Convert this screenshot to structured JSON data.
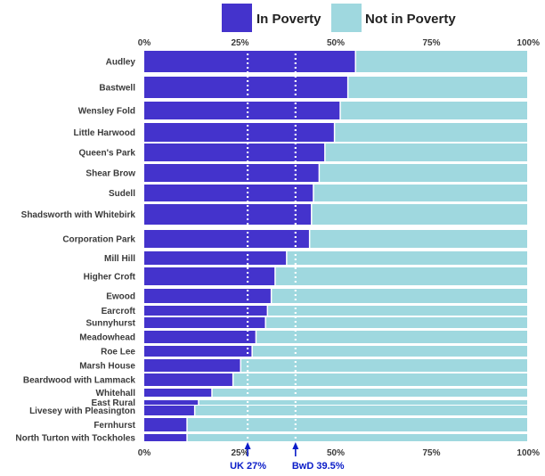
{
  "chart_data": {
    "type": "bar",
    "orientation": "horizontal",
    "stacked": true,
    "percent_stacked": true,
    "title": "",
    "xlabel": "",
    "ylabel": "",
    "xlim": [
      0,
      100
    ],
    "x_ticks": [
      "0%",
      "25%",
      "50%",
      "75%",
      "100%"
    ],
    "grid": false,
    "legend_position": "top",
    "categories": [
      "Audley",
      "Bastwell",
      "Wensley Fold",
      "Little Harwood",
      "Queen's Park",
      "Shear Brow",
      "Sudell",
      "Shadsworth with Whitebirk",
      "Corporation Park",
      "Mill Hill",
      "Higher Croft",
      "Ewood",
      "Earcroft",
      "Sunnyhurst",
      "Meadowhead",
      "Roe Lee",
      "Marsh House",
      "Beardwood with Lammack",
      "Whitehall",
      "East Rural",
      "Livesey with Pleasington",
      "Fernhurst",
      "North Turton with Tockholes"
    ],
    "series": [
      {
        "name": "In Poverty",
        "color": "#4433cc",
        "values": [
          55,
          53,
          51,
          49.5,
          47,
          45.5,
          44,
          43.5,
          43,
          37,
          34,
          33,
          32,
          31.5,
          29,
          28,
          25,
          23,
          17.5,
          14,
          13,
          11,
          11
        ]
      },
      {
        "name": "Not in Poverty",
        "color": "#9fd8df",
        "values": [
          45,
          47,
          49,
          50.5,
          53,
          54.5,
          56,
          56.5,
          57,
          63,
          66,
          67,
          68,
          68.5,
          71,
          72,
          75,
          77,
          82.5,
          86,
          87,
          89,
          89
        ]
      }
    ],
    "reference_lines": [
      {
        "label": "UK 27%",
        "value": 27
      },
      {
        "label": "BwD 39.5%",
        "value": 39.5
      }
    ]
  }
}
